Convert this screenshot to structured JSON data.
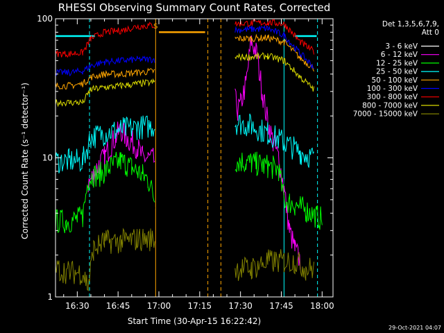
{
  "chart_data": {
    "type": "line",
    "title": "RHESSI Observing Summary Count Rates, Corrected",
    "xlabel": "Start Time (30-Apr-15 16:22:42)",
    "ylabel": "Corrected Count Rate (s⁻¹ detector⁻¹)",
    "y_scale": "log",
    "ylim": [
      1,
      100
    ],
    "y_ticks": [
      "1",
      "10",
      "100"
    ],
    "xlim_minutes_from_1622": [
      0,
      102
    ],
    "x_ticks": [
      {
        "label": "16:30",
        "minute": 8
      },
      {
        "label": "16:45",
        "minute": 23
      },
      {
        "label": "17:00",
        "minute": 38
      },
      {
        "label": "17:15",
        "minute": 53
      },
      {
        "label": "17:30",
        "minute": 68
      },
      {
        "label": "17:45",
        "minute": 83
      },
      {
        "label": "18:00",
        "minute": 98
      }
    ],
    "legend_header": [
      "Det 1,3,5,6,7,9,",
      "Att 0"
    ],
    "legend_position": "right",
    "flag_marker": "S",
    "timestamp": "29-Oct-2021 04:07",
    "series": [
      {
        "name": "3 - 6 keV",
        "color": "#000000",
        "x": [
          0,
          5,
          10,
          13,
          14,
          16,
          19,
          21,
          23,
          25,
          27,
          29,
          31,
          33,
          35,
          36.5,
          66,
          67,
          68,
          70,
          72,
          74,
          76,
          78,
          80,
          82,
          84,
          86,
          88
        ],
        "y": [
          null,
          null,
          null,
          2.0,
          3.2,
          5.5,
          8.0,
          11,
          13,
          12,
          10,
          8.5,
          7.5,
          6.5,
          5.5,
          4.5,
          23,
          21,
          22,
          32,
          60,
          48,
          28,
          16,
          12,
          9,
          6,
          4.5,
          4.0
        ]
      },
      {
        "name": "6 - 12 keV",
        "color": "#ff00ff",
        "x": [
          12,
          14,
          16,
          18,
          20,
          22,
          24,
          26,
          28,
          30,
          32,
          34,
          36.5,
          66,
          67,
          68,
          70,
          72,
          74,
          76,
          78,
          80,
          82,
          84,
          86,
          88,
          90
        ],
        "y": [
          6.5,
          7.5,
          9,
          10,
          12,
          14,
          16,
          14,
          13,
          12,
          10,
          10,
          9.5,
          26,
          22,
          24,
          34,
          70,
          55,
          30,
          18,
          13,
          10,
          6,
          3,
          2.2,
          1.8
        ]
      },
      {
        "name": "12 - 25 keV",
        "color": "#00ff00",
        "x": [
          0,
          4,
          8,
          10,
          12,
          14,
          16,
          18,
          20,
          22,
          24,
          26,
          28,
          30,
          32,
          34,
          36.5,
          66,
          68,
          70,
          72,
          74,
          76,
          78,
          80,
          82,
          84,
          86,
          88,
          90,
          92,
          94,
          96,
          98
        ],
        "y": [
          3.5,
          3.5,
          3.6,
          3.8,
          7.0,
          7.5,
          7.5,
          8.0,
          8.5,
          9.0,
          9.5,
          9.0,
          8.5,
          8.0,
          7.5,
          7.0,
          5.0,
          9.5,
          9.5,
          9.3,
          9.2,
          9.0,
          8.8,
          8.7,
          8.5,
          8.3,
          5.0,
          4.8,
          4.6,
          4.4,
          4.2,
          4.0,
          3.8,
          3.6
        ]
      },
      {
        "name": "25 - 50 keV",
        "color": "#00ffff",
        "x": [
          0,
          5,
          10,
          13,
          18,
          24,
          30,
          36.5,
          66,
          72,
          78,
          84,
          90,
          95
        ],
        "y": [
          9.5,
          9.5,
          9.5,
          14,
          15,
          16,
          16.5,
          17,
          18,
          17,
          15,
          13,
          11,
          10
        ]
      },
      {
        "name": "50 - 100 keV",
        "color": "#ffa500",
        "x": [
          0,
          5,
          10,
          13,
          18,
          24,
          30,
          36.5,
          66,
          72,
          78,
          84,
          90,
          95
        ],
        "y": [
          33,
          33,
          34,
          38,
          40,
          40,
          41,
          42,
          72,
          72,
          73,
          68,
          52,
          44
        ]
      },
      {
        "name": "100 - 300 keV",
        "color": "#0000ff",
        "x": [
          0,
          5,
          10,
          13,
          18,
          24,
          30,
          36.5,
          66,
          72,
          78,
          84,
          90,
          95
        ],
        "y": [
          41,
          41,
          42,
          46,
          49,
          50,
          51,
          51,
          83,
          84,
          85,
          76,
          56,
          45
        ]
      },
      {
        "name": "300 - 800 keV",
        "color": "#ff0000",
        "x": [
          0,
          5,
          10,
          13,
          18,
          24,
          30,
          36.5,
          66,
          72,
          78,
          84,
          90,
          95
        ],
        "y": [
          56,
          56,
          57,
          72,
          80,
          82,
          88,
          90,
          92,
          93,
          94,
          92,
          68,
          58
        ]
      },
      {
        "name": "800 - 7000 keV",
        "color": "#dcdc00",
        "x": [
          0,
          5,
          10,
          13,
          18,
          24,
          30,
          36.5,
          66,
          72,
          78,
          84,
          90,
          95
        ],
        "y": [
          25,
          25,
          25,
          31,
          32,
          33,
          34,
          35,
          53,
          53,
          54,
          50,
          38,
          31
        ]
      },
      {
        "name": "7000 - 15000 keV",
        "color": "#808000",
        "x": [
          0,
          5,
          10,
          12,
          14,
          18,
          24,
          30,
          36.5,
          66,
          72,
          78,
          84,
          88,
          92,
          95
        ],
        "y": [
          1.6,
          1.5,
          1.5,
          1.2,
          2.2,
          2.5,
          2.5,
          2.6,
          2.6,
          1.6,
          1.6,
          1.8,
          1.8,
          1.8,
          1.6,
          1.6
        ]
      }
    ],
    "vertical_markers": [
      {
        "minute": 0,
        "color": "#00ffff",
        "style": "solid"
      },
      {
        "minute": 12.5,
        "color": "#00ffff",
        "style": "dashed"
      },
      {
        "minute": 36.8,
        "color": "#ffa500",
        "style": "solid"
      },
      {
        "minute": 56.0,
        "color": "#ffa500",
        "style": "dashed"
      },
      {
        "minute": 60.8,
        "color": "#ffa500",
        "style": "dashed"
      },
      {
        "minute": 84.0,
        "color": "#00ffff",
        "style": "solid"
      },
      {
        "minute": 96.3,
        "color": "#00ffff",
        "style": "dashed"
      }
    ],
    "bars": [
      {
        "from_minute": 38,
        "to_minute": 55,
        "value": 80,
        "color": "#ffa500"
      },
      {
        "from_minute": 0,
        "to_minute": 14.5,
        "value": 75,
        "color": "#00ffff"
      },
      {
        "from_minute": 88,
        "to_minute": 96,
        "value": 75,
        "color": "#00ffff"
      }
    ]
  }
}
